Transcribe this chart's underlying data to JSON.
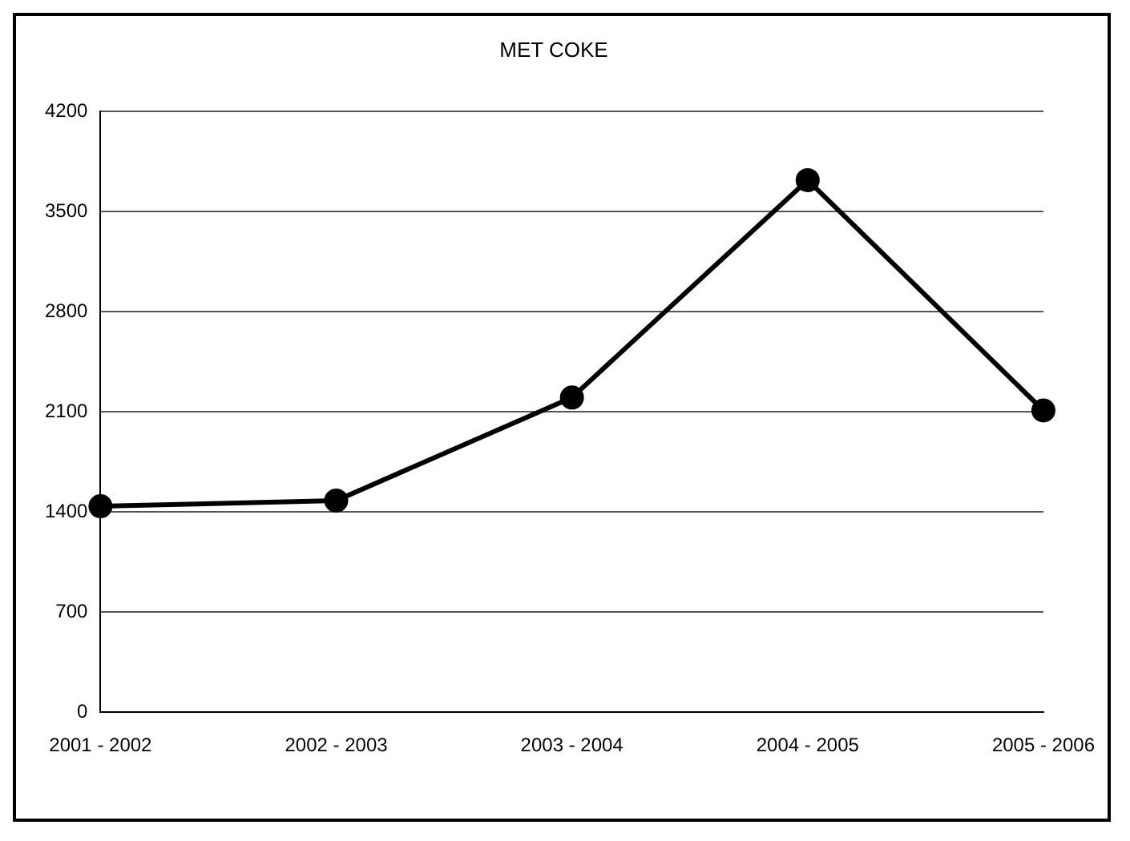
{
  "chart_data": {
    "type": "line",
    "title": "MET COKE",
    "categories": [
      "2001 - 2002",
      "2002 - 2003",
      "2003 - 2004",
      "2004 - 2005",
      "2005 - 2006"
    ],
    "series": [
      {
        "color": "#000000",
        "values": [
          1440,
          1480,
          2200,
          3720,
          2110
        ]
      }
    ],
    "ylim": [
      0,
      4200
    ],
    "yticks": [
      0,
      700,
      1400,
      2100,
      2800,
      3500,
      4200
    ],
    "grid": "y",
    "legend": false,
    "marker": "circle",
    "line_style": "solid"
  }
}
